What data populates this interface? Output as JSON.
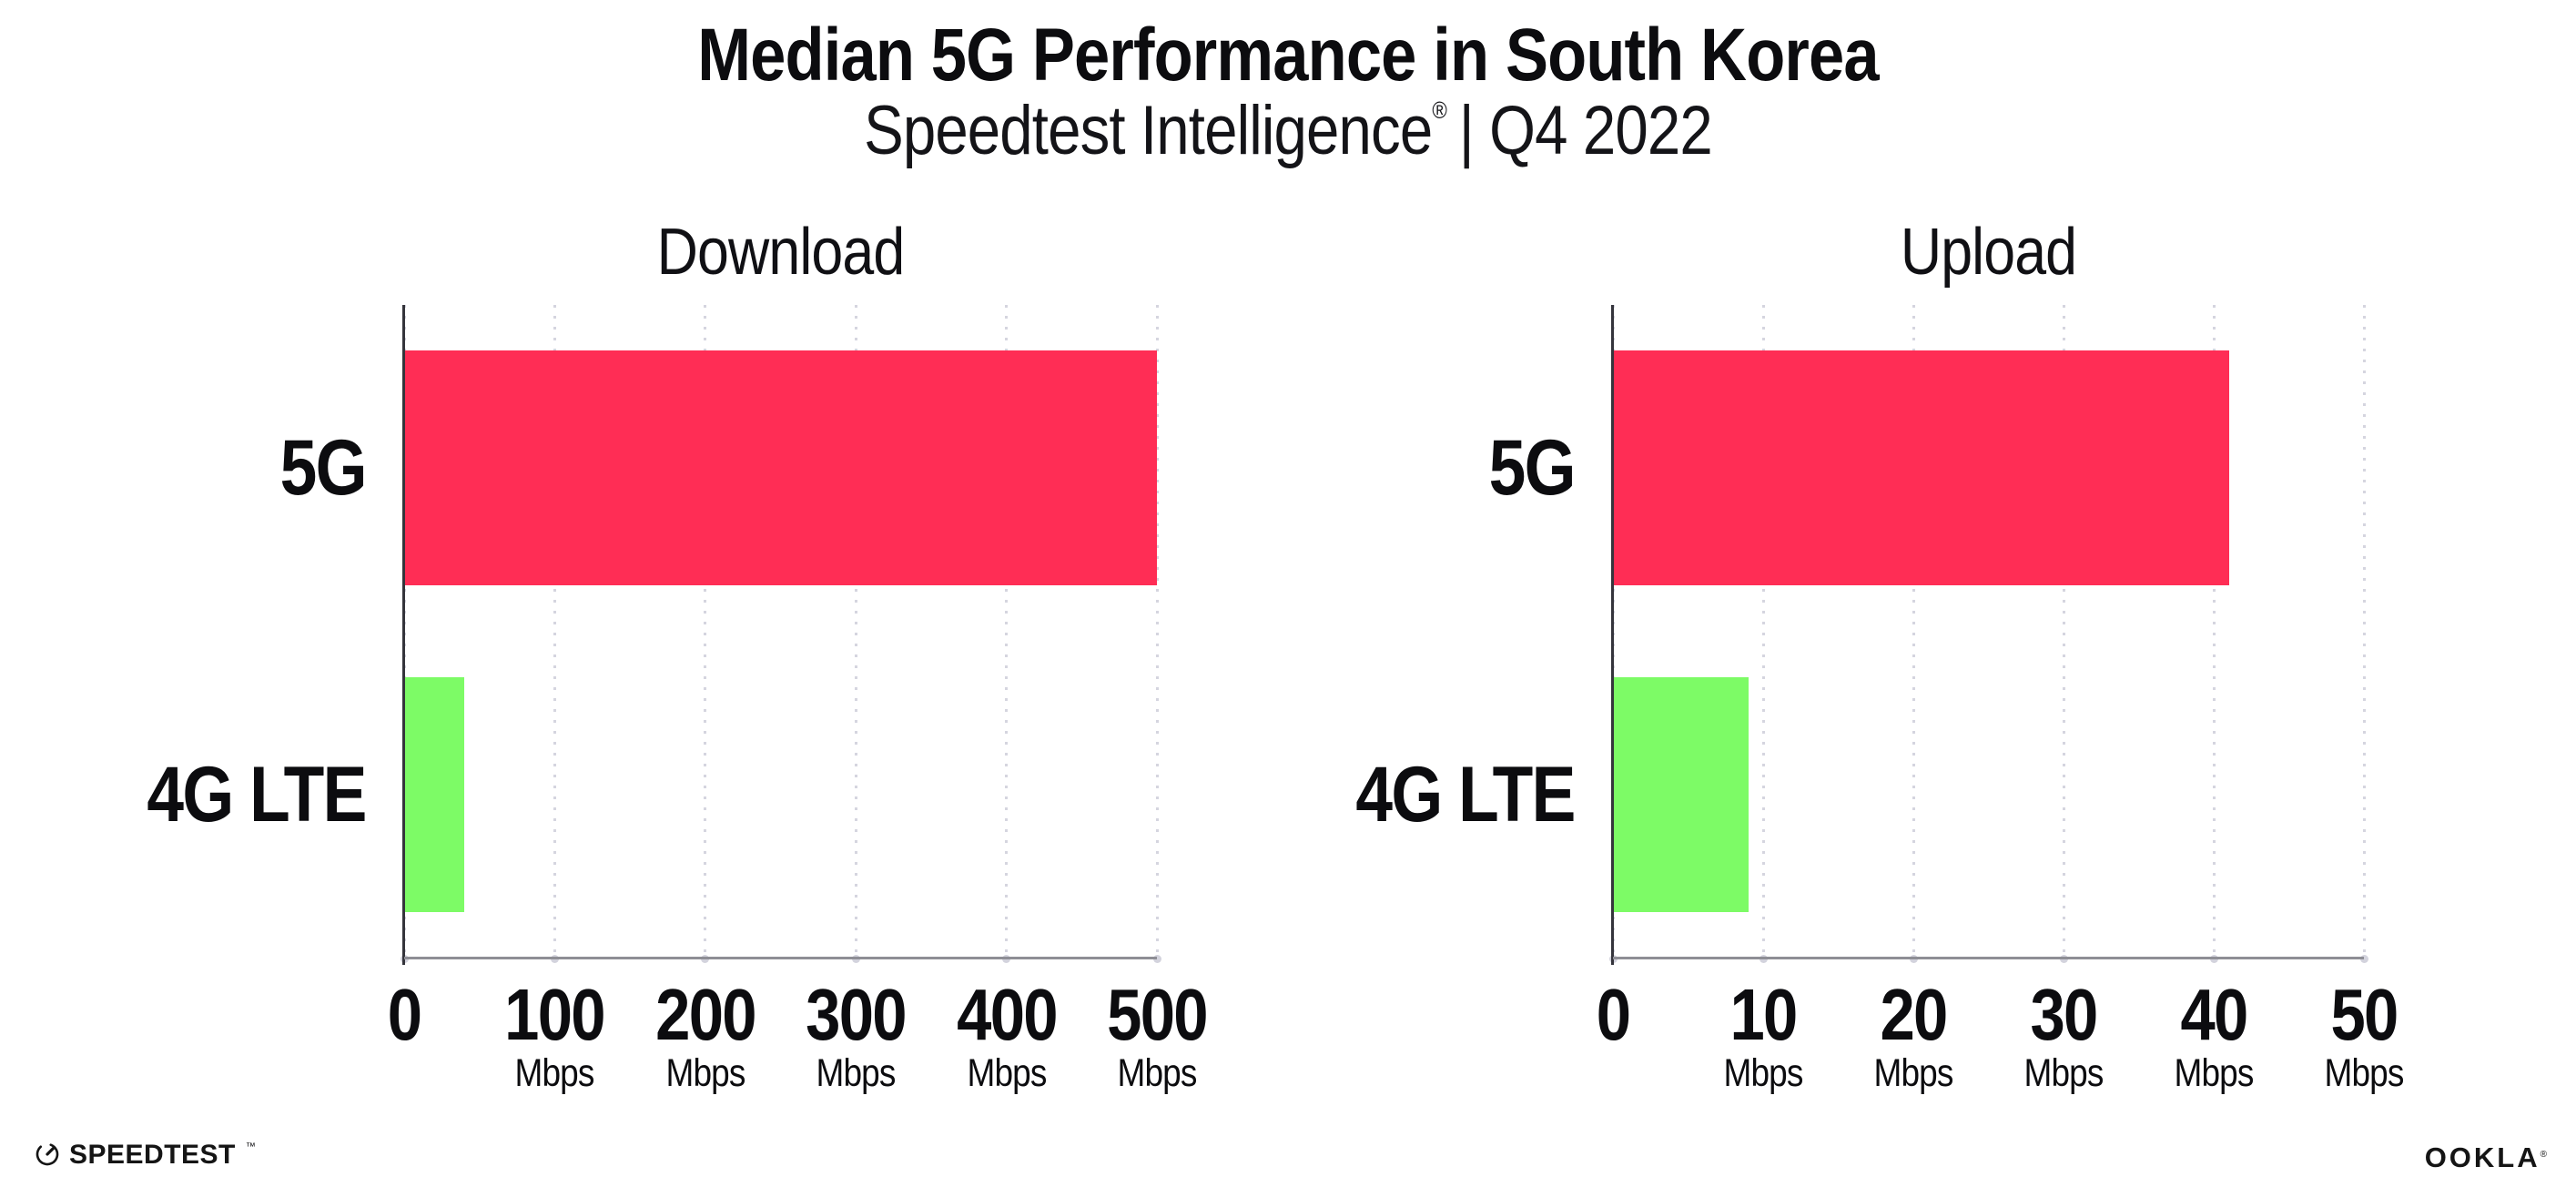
{
  "header": {
    "title": "Median 5G Performance in South Korea",
    "subtitle_brand": "Speedtest Intelligence",
    "subtitle_reg": "®",
    "subtitle_tail": "| Q4 2022"
  },
  "chart_data": [
    {
      "type": "bar",
      "orientation": "horizontal",
      "title": "Download",
      "categories": [
        "5G",
        "4G LTE"
      ],
      "values": [
        500,
        40
      ],
      "unit": "Mbps",
      "xlim": [
        0,
        500
      ],
      "xticks": [
        0,
        100,
        200,
        300,
        400,
        500
      ],
      "tick_unit_label": "Mbps",
      "bar_colors": [
        "#FF2D55",
        "#7DFB66"
      ],
      "grid": "dotted-vertical",
      "legend": "none"
    },
    {
      "type": "bar",
      "orientation": "horizontal",
      "title": "Upload",
      "categories": [
        "5G",
        "4G LTE"
      ],
      "values": [
        41,
        9
      ],
      "unit": "Mbps",
      "xlim": [
        0,
        50
      ],
      "xticks": [
        0,
        10,
        20,
        30,
        40,
        50
      ],
      "tick_unit_label": "Mbps",
      "bar_colors": [
        "#FF2D55",
        "#7DFB66"
      ],
      "grid": "dotted-vertical",
      "legend": "none"
    }
  ],
  "footer": {
    "speedtest_label": "SPEEDTEST",
    "speedtest_mark": "™",
    "ookla_label": "OOKLA",
    "ookla_mark": "®"
  },
  "colors": {
    "bar_5g": "#FF2D55",
    "bar_4g_lte": "#7DFB66",
    "gridline": "#D5D5DF",
    "x_axis_line": "#8E8E95",
    "y_axis_line": "#35353C",
    "text": "#0C0C0F",
    "background": "#FFFFFF"
  }
}
